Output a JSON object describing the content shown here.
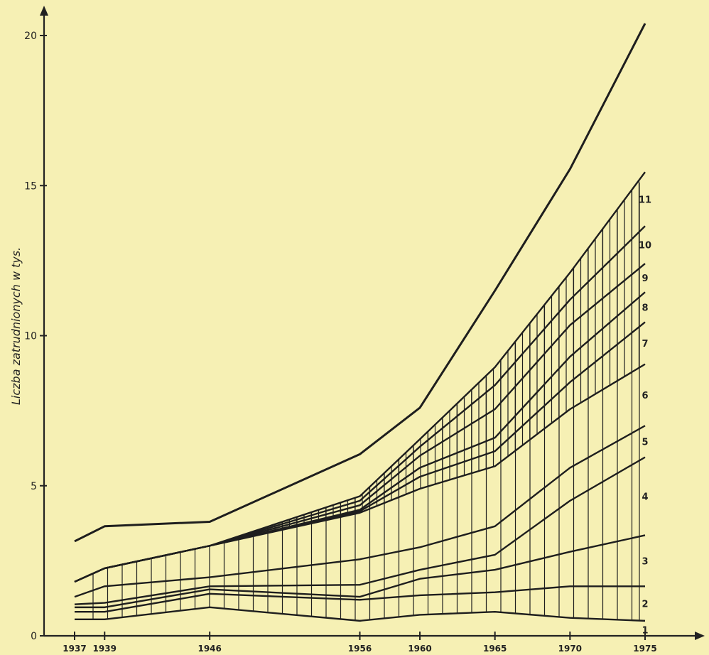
{
  "chart_data": {
    "type": "line",
    "title": "",
    "xlabel": "",
    "ylabel": "Liczba zatrudnionych w tys.",
    "x": [
      1937,
      1939,
      1946,
      1956,
      1960,
      1965,
      1970,
      1975
    ],
    "x_tick_labels": [
      "1937",
      "1939",
      "1946",
      "1956",
      "1960",
      "1965",
      "1970",
      "1975"
    ],
    "y_ticks": [
      0,
      5,
      10,
      15,
      20
    ],
    "ylim": [
      0,
      20.5
    ],
    "grid": false,
    "band_labels": [
      "1",
      "2",
      "3",
      "4",
      "5",
      "6",
      "7",
      "8",
      "9",
      "10",
      "11"
    ],
    "cumulative_lines": [
      [
        0.55,
        0.55,
        0.95,
        0.5,
        0.7,
        0.8,
        0.6,
        0.5
      ],
      [
        0.8,
        0.8,
        1.4,
        1.2,
        1.35,
        1.45,
        1.65,
        1.65
      ],
      [
        0.95,
        0.95,
        1.55,
        1.3,
        1.9,
        2.2,
        2.8,
        3.35
      ],
      [
        1.05,
        1.1,
        1.65,
        1.7,
        2.2,
        2.7,
        4.5,
        5.95
      ],
      [
        1.3,
        1.65,
        1.95,
        2.55,
        2.95,
        3.65,
        5.6,
        7.0
      ],
      [
        1.8,
        2.25,
        3.0,
        4.1,
        4.9,
        5.65,
        7.55,
        9.05
      ],
      [
        1.8,
        2.25,
        3.0,
        4.15,
        5.3,
        6.15,
        8.45,
        10.45
      ],
      [
        1.8,
        2.25,
        3.0,
        4.2,
        5.6,
        6.6,
        9.3,
        11.45
      ],
      [
        1.8,
        2.25,
        3.0,
        4.35,
        6.0,
        7.55,
        10.35,
        12.4
      ],
      [
        1.8,
        2.25,
        3.0,
        4.5,
        6.3,
        8.35,
        11.2,
        13.65
      ],
      [
        1.8,
        2.25,
        3.0,
        4.65,
        6.55,
        8.95,
        12.1,
        15.45
      ]
    ],
    "total": [
      3.15,
      3.65,
      3.8,
      6.05,
      7.6,
      11.5,
      15.55,
      20.4
    ],
    "hatched_start_index": 5
  }
}
